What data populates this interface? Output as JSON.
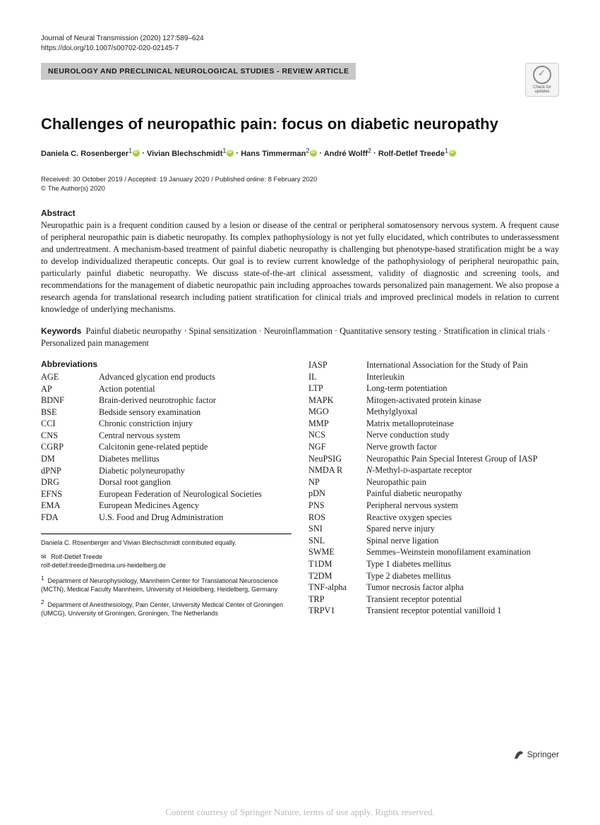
{
  "journal_line": "Journal of Neural Transmission (2020) 127:589–624",
  "doi_line": "https://doi.org/10.1007/s00702-020-02145-7",
  "category_banner": "NEUROLOGY AND PRECLINICAL NEUROLOGICAL STUDIES - REVIEW ARTICLE",
  "check_updates_label": "Check for updates",
  "title": "Challenges of neuropathic pain: focus on diabetic neuropathy",
  "authors": [
    {
      "name": "Daniela C. Rosenberger",
      "affil": "1",
      "orcid": true
    },
    {
      "name": "Vivian Blechschmidt",
      "affil": "1",
      "orcid": true
    },
    {
      "name": "Hans Timmerman",
      "affil": "2",
      "orcid": true
    },
    {
      "name": "André Wolff",
      "affil": "2",
      "orcid": false
    },
    {
      "name": "Rolf-Detlef Treede",
      "affil": "1",
      "orcid": true
    }
  ],
  "author_sep": " · ",
  "dates_line": "Received: 30 October 2019 / Accepted: 19 January 2020 / Published online: 8 February 2020",
  "copyright_line": "© The Author(s) 2020",
  "abstract_heading": "Abstract",
  "abstract_text": "Neuropathic pain is a frequent condition caused by a lesion or disease of the central or peripheral somatosensory nervous system. A frequent cause of peripheral neuropathic pain is diabetic neuropathy. Its complex pathophysiology is not yet fully elucidated, which contributes to underassessment and undertreatment. A mechanism-based treatment of painful diabetic neuropathy is challenging but phenotype-based stratification might be a way to develop individualized therapeutic concepts. Our goal is to review current knowledge of the pathophysiology of peripheral neuropathic pain, particularly painful diabetic neuropathy. We discuss state-of-the-art clinical assessment, validity of diagnostic and screening tools, and recommendations for the management of diabetic neuropathic pain including approaches towards personalized pain management. We also propose a research agenda for translational research including patient stratification for clinical trials and improved preclinical models in relation to current knowledge of underlying mechanisms.",
  "keywords_heading": "Keywords",
  "keywords_text": "Painful diabetic neuropathy · Spinal sensitization · Neuroinflammation · Quantitative sensory testing · Stratification in clinical trials · Personalized pain management",
  "abbreviations_heading": "Abbreviations",
  "abbreviations_left": [
    {
      "abbr": "AGE",
      "def": "Advanced glycation end products"
    },
    {
      "abbr": "AP",
      "def": "Action potential"
    },
    {
      "abbr": "BDNF",
      "def": "Brain-derived neurotrophic factor"
    },
    {
      "abbr": "BSE",
      "def": "Bedside sensory examination"
    },
    {
      "abbr": "CCI",
      "def": "Chronic constriction injury"
    },
    {
      "abbr": "CNS",
      "def": "Central nervous system"
    },
    {
      "abbr": "CGRP",
      "def": "Calcitonin gene-related peptide"
    },
    {
      "abbr": "DM",
      "def": "Diabetes mellitus"
    },
    {
      "abbr": "dPNP",
      "def": "Diabetic polyneuropathy"
    },
    {
      "abbr": "DRG",
      "def": "Dorsal root ganglion"
    },
    {
      "abbr": "EFNS",
      "def": "European Federation of Neurological Societies"
    },
    {
      "abbr": "EMA",
      "def": "European Medicines Agency"
    },
    {
      "abbr": "FDA",
      "def": "U.S. Food and Drug Administration"
    }
  ],
  "abbreviations_right": [
    {
      "abbr": "IASP",
      "def": "International Association for the Study of Pain"
    },
    {
      "abbr": "IL",
      "def": "Interleukin"
    },
    {
      "abbr": "LTP",
      "def": "Long-term potentiation"
    },
    {
      "abbr": "MAPK",
      "def": "Mitogen-activated protein kinase"
    },
    {
      "abbr": "MGO",
      "def": "Methylglyoxal"
    },
    {
      "abbr": "MMP",
      "def": "Matrix metalloproteinase"
    },
    {
      "abbr": "NCS",
      "def": "Nerve conduction study"
    },
    {
      "abbr": "NGF",
      "def": "Nerve growth factor"
    },
    {
      "abbr": "NeuPSIG",
      "def": "Neuropathic Pain Special Interest Group of IASP"
    },
    {
      "abbr": "NMDA R",
      "def": "N-Methyl-ᴅ-aspartate receptor"
    },
    {
      "abbr": "NP",
      "def": "Neuropathic pain"
    },
    {
      "abbr": "pDN",
      "def": "Painful diabetic neuropathy"
    },
    {
      "abbr": "PNS",
      "def": "Peripheral nervous system"
    },
    {
      "abbr": "ROS",
      "def": "Reactive oxygen species"
    },
    {
      "abbr": "SNI",
      "def": "Spared nerve injury"
    },
    {
      "abbr": "SNL",
      "def": "Spinal nerve ligation"
    },
    {
      "abbr": "SWME",
      "def": "Semmes–Weinstein monofilament examination"
    },
    {
      "abbr": "T1DM",
      "def": "Type 1 diabetes mellitus"
    },
    {
      "abbr": "T2DM",
      "def": "Type 2 diabetes mellitus"
    },
    {
      "abbr": "TNF-alpha",
      "def": "Tumor necrosis factor alpha"
    },
    {
      "abbr": "TRP",
      "def": "Transient receptor potential"
    },
    {
      "abbr": "TRPV1",
      "def": "Transient receptor potential vanilloid 1"
    }
  ],
  "footnotes": {
    "contrib": "Daniela C. Rosenberger and Vivian Blechschmidt contributed equally.",
    "corresponding_name": "Rolf-Detlef Treede",
    "corresponding_email": "rolf-detlef.treede@medma.uni-heidelberg.de",
    "affil1": "Department of Neurophysiology, Mannheim Center for Translational Neuroscience (MCTN), Medical Faculty Mannheim, University of Heidelberg, Heidelberg, Germany",
    "affil2": "Department of Anesthesiology, Pain Center, University Medical Center of Groningen (UMCG), University of Groningen, Groningen, The Netherlands"
  },
  "publisher_logo": "Springer",
  "courtesy_line": "Content courtesy of Springer Nature, terms of use apply. Rights reserved.",
  "colors": {
    "banner_bg": "#c8c8c8",
    "orcid_green": "#a6ce39",
    "text": "#1a1a1a",
    "courtesy": "#b8b8b8"
  }
}
